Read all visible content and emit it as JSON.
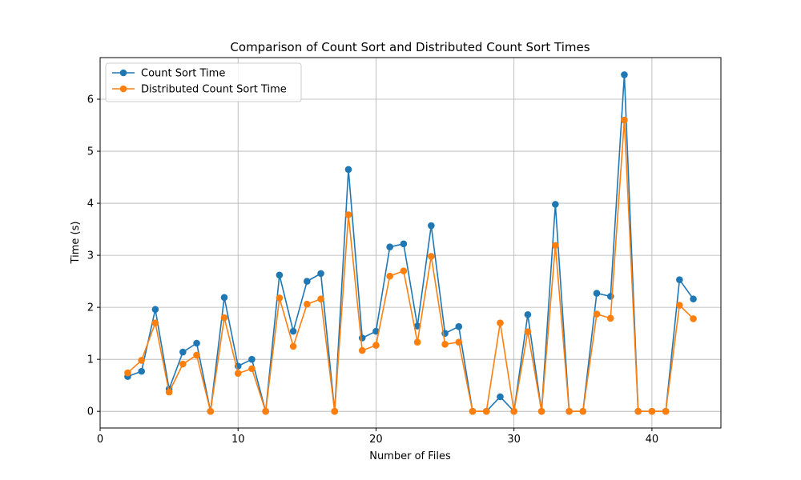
{
  "chart_data": {
    "type": "line",
    "title": "Comparison of Count Sort and Distributed Count Sort Times",
    "xlabel": "Number of Files",
    "ylabel": "Time (s)",
    "xlim": [
      0,
      45
    ],
    "ylim": [
      -0.32,
      6.8
    ],
    "xticks": [
      0,
      10,
      20,
      30,
      40
    ],
    "yticks": [
      0,
      1,
      2,
      3,
      4,
      5,
      6
    ],
    "grid": true,
    "legend_position": "top-left",
    "x": [
      2,
      3,
      4,
      5,
      6,
      7,
      8,
      9,
      10,
      11,
      12,
      13,
      14,
      15,
      16,
      17,
      18,
      19,
      20,
      21,
      22,
      23,
      24,
      25,
      26,
      27,
      28,
      29,
      30,
      31,
      32,
      33,
      34,
      35,
      36,
      37,
      38,
      39,
      40,
      41,
      42,
      43
    ],
    "series": [
      {
        "name": "Count Sort Time",
        "color": "#1f77b4",
        "values": [
          0.67,
          0.77,
          1.96,
          0.43,
          1.14,
          1.31,
          0,
          2.19,
          0.87,
          1.0,
          0,
          2.62,
          1.54,
          2.5,
          2.65,
          0,
          4.65,
          1.41,
          1.54,
          3.16,
          3.22,
          1.64,
          3.57,
          1.5,
          1.63,
          0,
          0,
          0.28,
          0,
          1.86,
          0,
          3.98,
          0,
          0,
          2.27,
          2.21,
          6.47,
          0,
          0,
          0,
          2.53,
          2.16
        ]
      },
      {
        "name": "Distributed Count Sort Time",
        "color": "#ff7f0e",
        "values": [
          0.74,
          0.98,
          1.7,
          0.37,
          0.91,
          1.08,
          0,
          1.8,
          0.73,
          0.82,
          0,
          2.18,
          1.25,
          2.06,
          2.16,
          0,
          3.78,
          1.17,
          1.27,
          2.6,
          2.7,
          1.33,
          2.98,
          1.29,
          1.33,
          0,
          0,
          1.7,
          0,
          1.53,
          0,
          3.19,
          0,
          0,
          1.87,
          1.79,
          5.6,
          0,
          0,
          0,
          2.04,
          1.78
        ]
      }
    ]
  }
}
